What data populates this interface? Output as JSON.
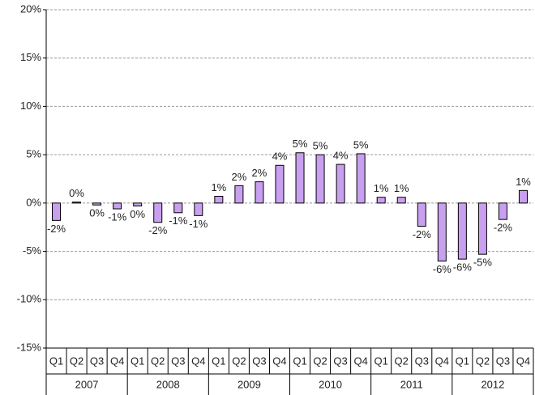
{
  "chart_data": {
    "type": "bar",
    "categories": [
      "Q1",
      "Q2",
      "Q3",
      "Q4",
      "Q1",
      "Q2",
      "Q3",
      "Q4",
      "Q1",
      "Q2",
      "Q3",
      "Q4",
      "Q1",
      "Q2",
      "Q3",
      "Q4",
      "Q1",
      "Q2",
      "Q3",
      "Q4",
      "Q1",
      "Q2",
      "Q3",
      "Q4"
    ],
    "years": [
      "2007",
      "2008",
      "2009",
      "2010",
      "2011",
      "2012"
    ],
    "values": [
      -1.8,
      0.1,
      -0.2,
      -0.6,
      -0.3,
      -2.0,
      -1.0,
      -1.3,
      0.7,
      1.8,
      2.2,
      3.9,
      5.2,
      5.0,
      4.0,
      5.1,
      0.6,
      0.6,
      -2.4,
      -6.0,
      -5.8,
      -5.3,
      -1.7,
      1.3
    ],
    "value_labels": [
      "-2%",
      "0%",
      "0%",
      "-1%",
      "0%",
      "-2%",
      "-1%",
      "-1%",
      "1%",
      "2%",
      "2%",
      "4%",
      "5%",
      "5%",
      "4%",
      "5%",
      "1%",
      "1%",
      "-2%",
      "-6%",
      "-6%",
      "-5%",
      "-2%",
      "1%"
    ],
    "color": "#c9a0f0",
    "ylim": [
      -15,
      20
    ],
    "yticks": [
      {
        "value": -15,
        "label": "-15%"
      },
      {
        "value": -10,
        "label": "-10%"
      },
      {
        "value": -5,
        "label": "-5%"
      },
      {
        "value": 0,
        "label": "0%"
      },
      {
        "value": 5,
        "label": "5%"
      },
      {
        "value": 10,
        "label": "10%"
      },
      {
        "value": 15,
        "label": "15%"
      },
      {
        "value": 20,
        "label": "20%"
      }
    ],
    "grid": true
  }
}
